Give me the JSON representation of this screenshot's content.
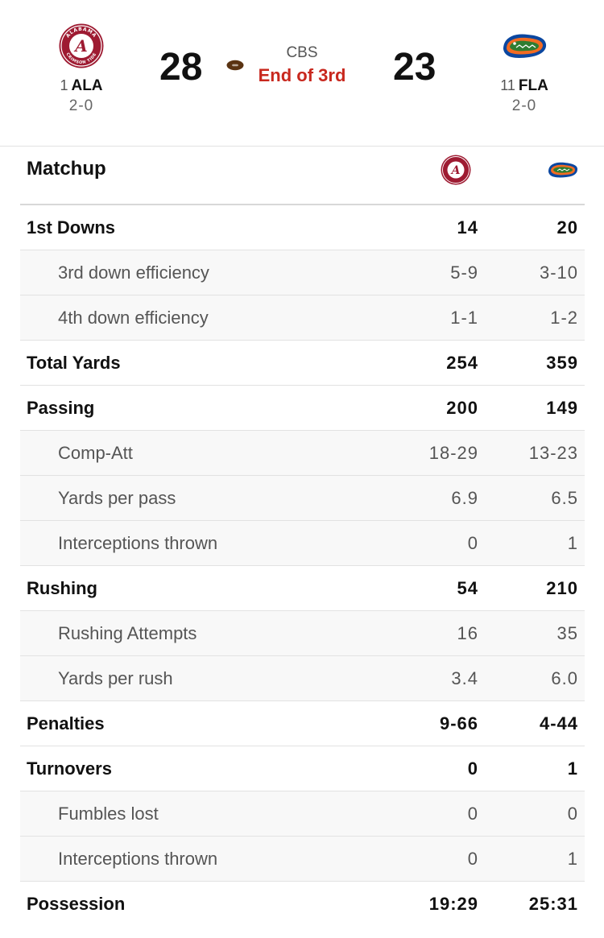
{
  "scoreboard": {
    "away": {
      "rank": "1",
      "abbr": "ALA",
      "record": "2-0",
      "score": "28",
      "logo_text_top": "ALABAMA",
      "logo_text_bottom": "CRIMSON TIDE"
    },
    "home": {
      "rank": "11",
      "abbr": "FLA",
      "record": "2-0",
      "score": "23"
    },
    "network": "CBS",
    "status": "End of 3rd",
    "possession_icon": "football-icon"
  },
  "colors": {
    "alabama_crimson": "#9e1b32",
    "florida_orange": "#f26b22",
    "florida_blue": "#0b47a0",
    "florida_green": "#2e7d32",
    "status_red": "#c8281e"
  },
  "matchup": {
    "title": "Matchup",
    "rows": [
      {
        "label": "1st Downs",
        "away": "14",
        "home": "20",
        "level": "main"
      },
      {
        "label": "3rd down efficiency",
        "away": "5-9",
        "home": "3-10",
        "level": "sub"
      },
      {
        "label": "4th down efficiency",
        "away": "1-1",
        "home": "1-2",
        "level": "sub"
      },
      {
        "label": "Total Yards",
        "away": "254",
        "home": "359",
        "level": "main"
      },
      {
        "label": "Passing",
        "away": "200",
        "home": "149",
        "level": "main"
      },
      {
        "label": "Comp-Att",
        "away": "18-29",
        "home": "13-23",
        "level": "sub"
      },
      {
        "label": "Yards per pass",
        "away": "6.9",
        "home": "6.5",
        "level": "sub"
      },
      {
        "label": "Interceptions thrown",
        "away": "0",
        "home": "1",
        "level": "sub"
      },
      {
        "label": "Rushing",
        "away": "54",
        "home": "210",
        "level": "main"
      },
      {
        "label": "Rushing Attempts",
        "away": "16",
        "home": "35",
        "level": "sub"
      },
      {
        "label": "Yards per rush",
        "away": "3.4",
        "home": "6.0",
        "level": "sub"
      },
      {
        "label": "Penalties",
        "away": "9-66",
        "home": "4-44",
        "level": "main"
      },
      {
        "label": "Turnovers",
        "away": "0",
        "home": "1",
        "level": "main"
      },
      {
        "label": "Fumbles lost",
        "away": "0",
        "home": "0",
        "level": "sub"
      },
      {
        "label": "Interceptions thrown",
        "away": "0",
        "home": "1",
        "level": "sub"
      },
      {
        "label": "Possession",
        "away": "19:29",
        "home": "25:31",
        "level": "main"
      }
    ]
  }
}
